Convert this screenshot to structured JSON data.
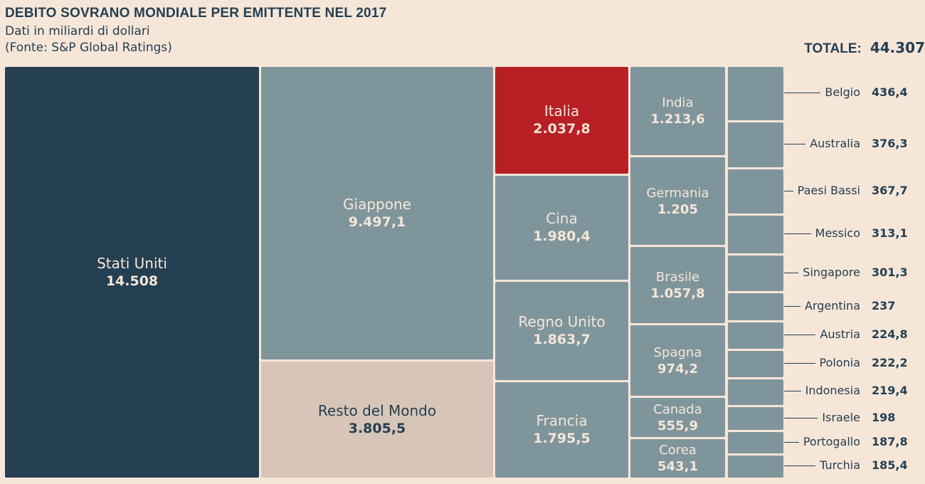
{
  "header": {
    "title": "DEBITO SOVRANO MONDIALE PER EMITTENTE NEL 2017",
    "subtitle": "Dati in miliardi di dollari",
    "source": "(Fonte: S&P Global Ratings)",
    "total_label": "TOTALE:",
    "total_value": "44.307"
  },
  "colors": {
    "background": "#f6e6d8",
    "usa": "#243f52",
    "default": "#7f959c",
    "italy": "#b82025",
    "rest": "#d7c6b7"
  },
  "chart_data": {
    "type": "treemap",
    "title": "DEBITO SOVRANO MONDIALE PER EMITTENTE NEL 2017",
    "unit": "miliardi di dollari",
    "total": 44307,
    "items": [
      {
        "name": "Stati Uniti",
        "label": "14.508",
        "value": 14508
      },
      {
        "name": "Giappone",
        "label": "9.497,1",
        "value": 9497.1
      },
      {
        "name": "Resto del Mondo",
        "label": "3.805,5",
        "value": 3805.5
      },
      {
        "name": "Italia",
        "label": "2.037,8",
        "value": 2037.8
      },
      {
        "name": "Cina",
        "label": "1.980,4",
        "value": 1980.4
      },
      {
        "name": "Regno Unito",
        "label": "1.863,7",
        "value": 1863.7
      },
      {
        "name": "Francia",
        "label": "1.795,5",
        "value": 1795.5
      },
      {
        "name": "India",
        "label": "1.213,6",
        "value": 1213.6
      },
      {
        "name": "Germania",
        "label": "1.205",
        "value": 1205
      },
      {
        "name": "Brasile",
        "label": "1.057,8",
        "value": 1057.8
      },
      {
        "name": "Spagna",
        "label": "974,2",
        "value": 974.2
      },
      {
        "name": "Canada",
        "label": "555,9",
        "value": 555.9
      },
      {
        "name": "Corea",
        "label": "543,1",
        "value": 543.1
      },
      {
        "name": "Belgio",
        "label": "436,4",
        "value": 436.4
      },
      {
        "name": "Australia",
        "label": "376,3",
        "value": 376.3
      },
      {
        "name": "Paesi Bassi",
        "label": "367,7",
        "value": 367.7
      },
      {
        "name": "Messico",
        "label": "313,1",
        "value": 313.1
      },
      {
        "name": "Singapore",
        "label": "301,3",
        "value": 301.3
      },
      {
        "name": "Argentina",
        "label": "237",
        "value": 237
      },
      {
        "name": "Austria",
        "label": "224,8",
        "value": 224.8
      },
      {
        "name": "Polonia",
        "label": "222,2",
        "value": 222.2
      },
      {
        "name": "Indonesia",
        "label": "219,4",
        "value": 219.4
      },
      {
        "name": "Israele",
        "label": "198",
        "value": 198
      },
      {
        "name": "Portogallo",
        "label": "187,8",
        "value": 187.8
      },
      {
        "name": "Turchia",
        "label": "185,4",
        "value": 185.4
      }
    ]
  }
}
